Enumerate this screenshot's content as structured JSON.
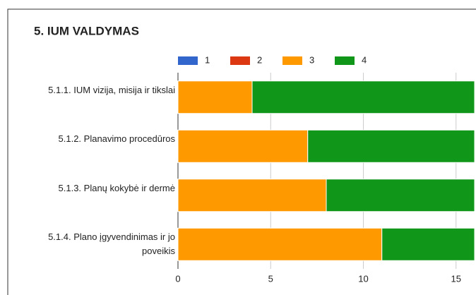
{
  "chart_data": {
    "type": "stacked_bar_horizontal",
    "title": "5. IUM VALDYMAS",
    "categories": [
      "5.1.1. IUM vizija, misija ir tikslai",
      "5.1.2. Planavimo procedūros",
      "5.1.3. Planų kokybė ir dermė",
      "5.1.4. Plano įgyvendinimas ir jo poveikis"
    ],
    "series": [
      {
        "name": "1",
        "color": "#3366cc",
        "values": [
          0,
          0,
          0,
          0
        ]
      },
      {
        "name": "2",
        "color": "#dc3912",
        "values": [
          0,
          0,
          0,
          0
        ]
      },
      {
        "name": "3",
        "color": "#ff9900",
        "values": [
          4,
          7,
          8,
          11
        ]
      },
      {
        "name": "4",
        "color": "#109618",
        "values": [
          12,
          9,
          8,
          5
        ]
      }
    ],
    "xlim": [
      0,
      16
    ],
    "xticks": [
      0,
      5,
      10,
      15
    ],
    "grid": true,
    "legend": "top"
  }
}
